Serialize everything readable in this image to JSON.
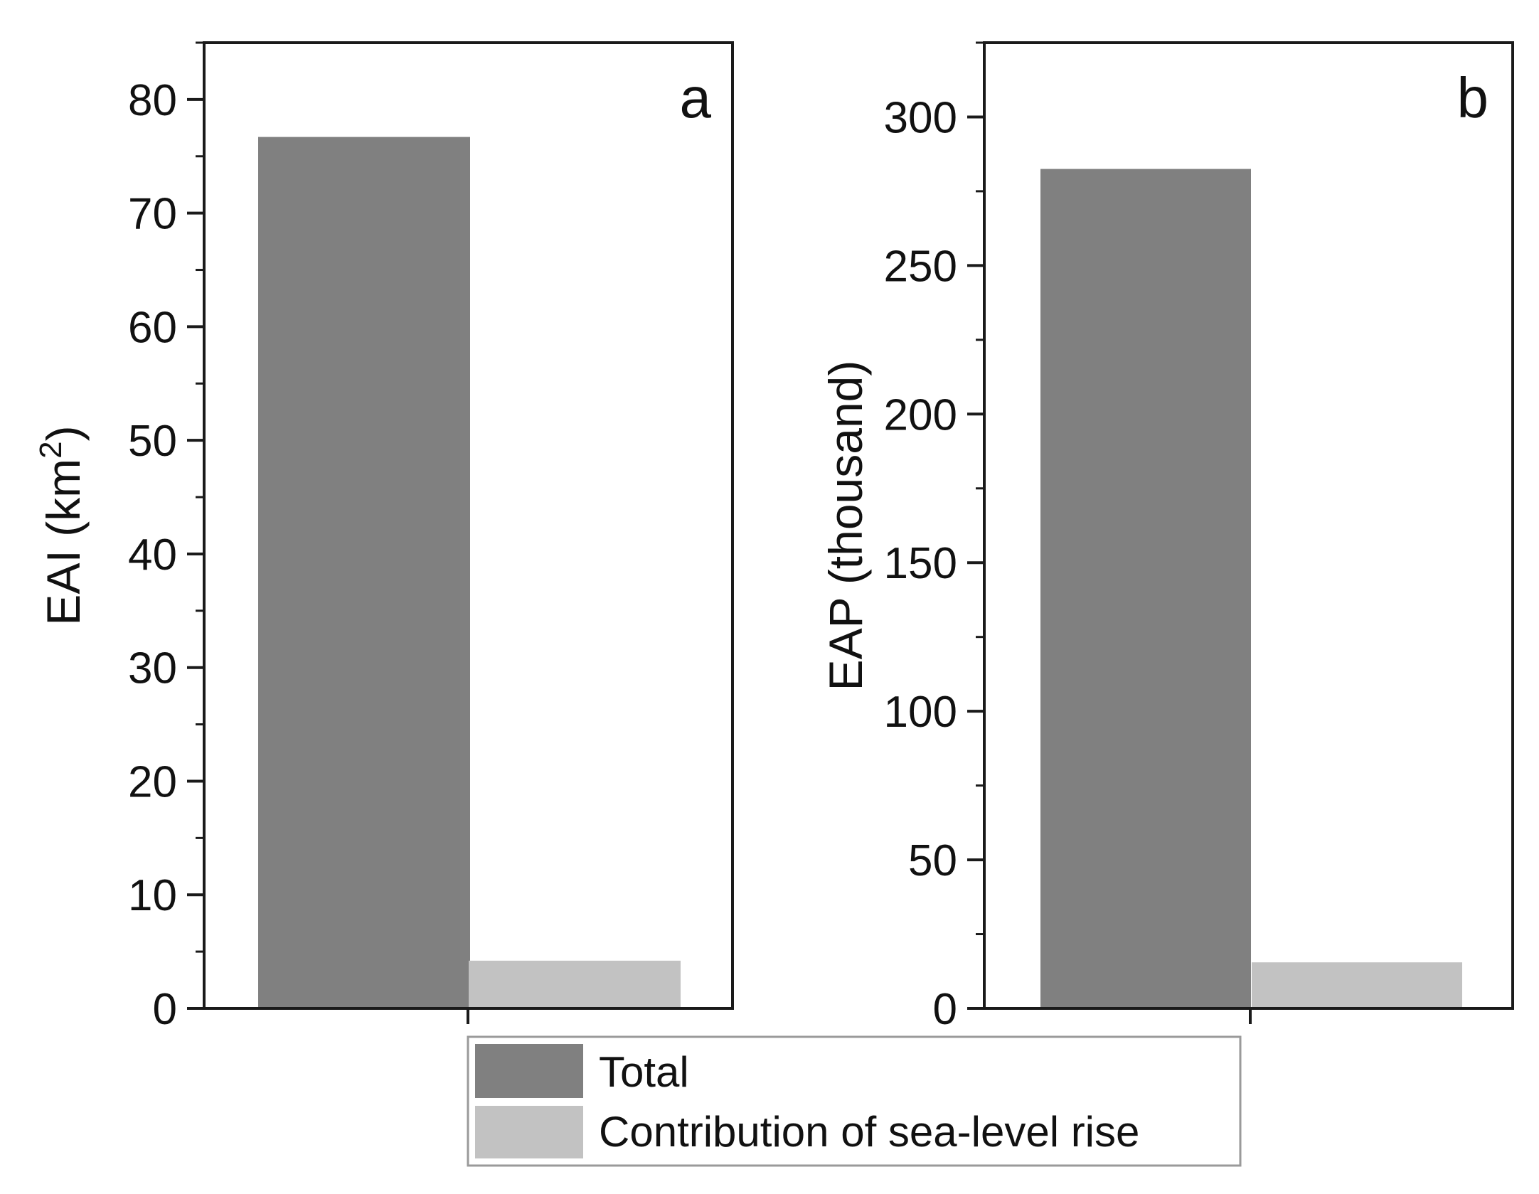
{
  "colors": {
    "total": "#808080",
    "slr": "#c2c2c2",
    "axis": "#1a1a1a",
    "legend_border": "#9a9a9a"
  },
  "legend": {
    "items": [
      {
        "label": "Total",
        "color": "#808080"
      },
      {
        "label": "Contribution of sea-level rise",
        "color": "#c2c2c2"
      }
    ],
    "placement": "bottom-center"
  },
  "chart_data": [
    {
      "type": "bar",
      "panel": "a",
      "ylabel": "EAI (km",
      "ylabel_superscript": "2",
      "ylabel_close": ")",
      "ylim": [
        0,
        85
      ],
      "yticks": [
        0,
        10,
        20,
        30,
        40,
        50,
        60,
        70,
        80
      ],
      "minor_step": 5,
      "grid": false,
      "series": [
        {
          "name": "Total",
          "values": [
            76.7
          ]
        },
        {
          "name": "Contribution of sea-level rise",
          "values": [
            4.2
          ]
        }
      ]
    },
    {
      "type": "bar",
      "panel": "b",
      "ylabel": "EAP (thousand)",
      "ylim": [
        0,
        325
      ],
      "yticks": [
        0,
        50,
        100,
        150,
        200,
        250,
        300
      ],
      "minor_step": 25,
      "grid": false,
      "series": [
        {
          "name": "Total",
          "values": [
            282.5
          ]
        },
        {
          "name": "Contribution of sea-level rise",
          "values": [
            15.5
          ]
        }
      ]
    }
  ]
}
